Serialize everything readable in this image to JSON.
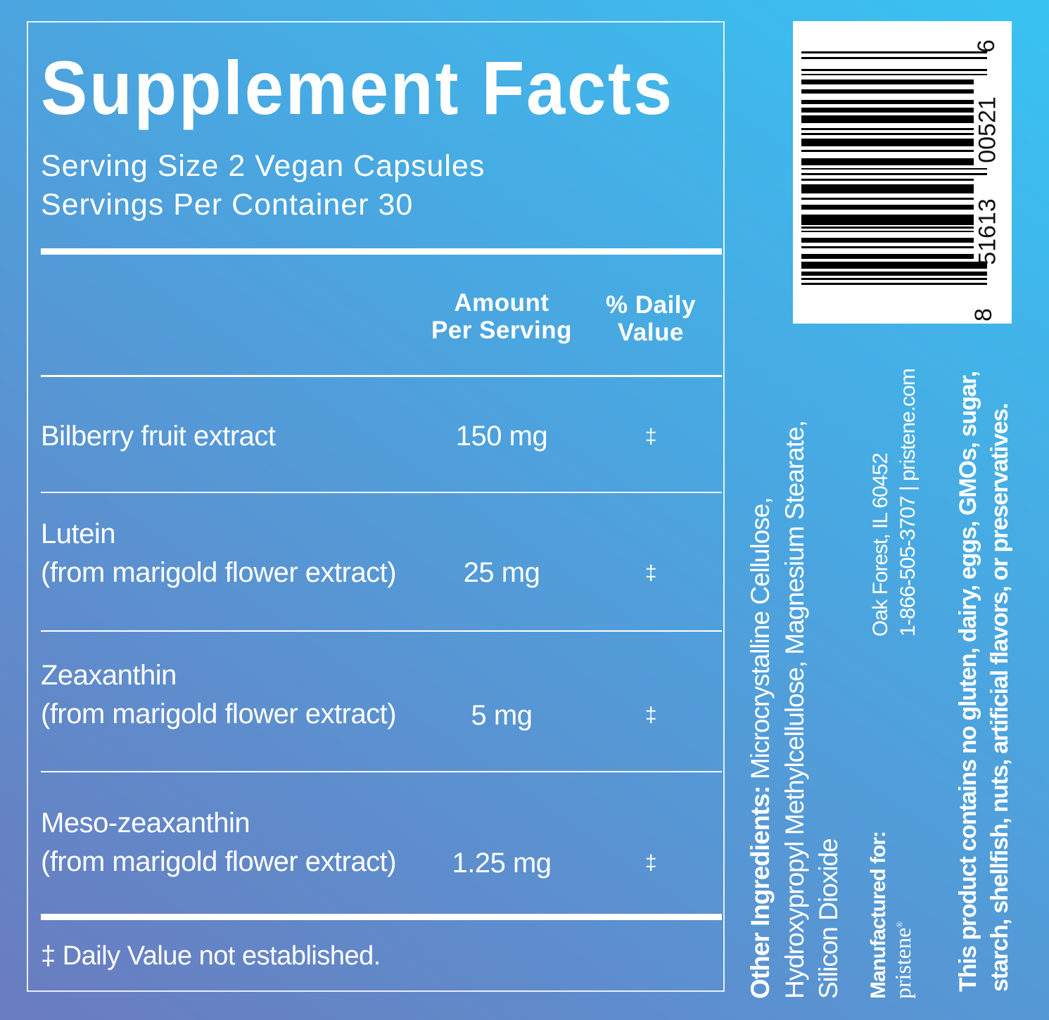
{
  "panel": {
    "title": "Supplement Facts",
    "serving_size": "Serving Size 2 Vegan Capsules",
    "servings_per_container": "Servings Per Container 30",
    "header": {
      "amount_line1": "Amount",
      "amount_line2": "Per Serving",
      "dv_line1": "% Daily",
      "dv_line2": "Value"
    },
    "rows": [
      {
        "name": "Bilberry fruit extract",
        "source": "",
        "amount": "150 mg",
        "dv": "‡"
      },
      {
        "name": "Lutein",
        "source": "(from marigold flower extract)",
        "amount": "25 mg",
        "dv": "‡"
      },
      {
        "name": "Zeaxanthin",
        "source": "(from marigold flower extract)",
        "amount": "5 mg",
        "dv": "‡"
      },
      {
        "name": "Meso-zeaxanthin",
        "source": "(from marigold flower extract)",
        "amount": "1.25 mg",
        "dv": "‡"
      }
    ],
    "footnote": "‡ Daily Value not established."
  },
  "side": {
    "other_label": "Other Ingredients:",
    "other_line1": " Microcrystalline Cellulose,",
    "other_line2": "Hydroxypropyl Methylcellulose, Magnesium Stearate,",
    "other_line3": "Silicon Dioxide",
    "manufactured_label": "Manufactured for:",
    "brand": "pristene",
    "brand_mark": "®",
    "address": "Oak Forest, IL 60452",
    "contact": "1-866-505-3707 | pristene.com",
    "allergen_line1": "This product contains no gluten, dairy, eggs, GMOs, sugar,",
    "allergen_line2": "starch, shellfish, nuts, artificial flavors, or preservatives."
  },
  "barcode": {
    "digits": [
      "8",
      "51613",
      "00521",
      "6"
    ]
  },
  "colors": {
    "gradient_top": "#38c3f2",
    "gradient_bottom": "#6a7cbf",
    "text": "#ffffff"
  }
}
